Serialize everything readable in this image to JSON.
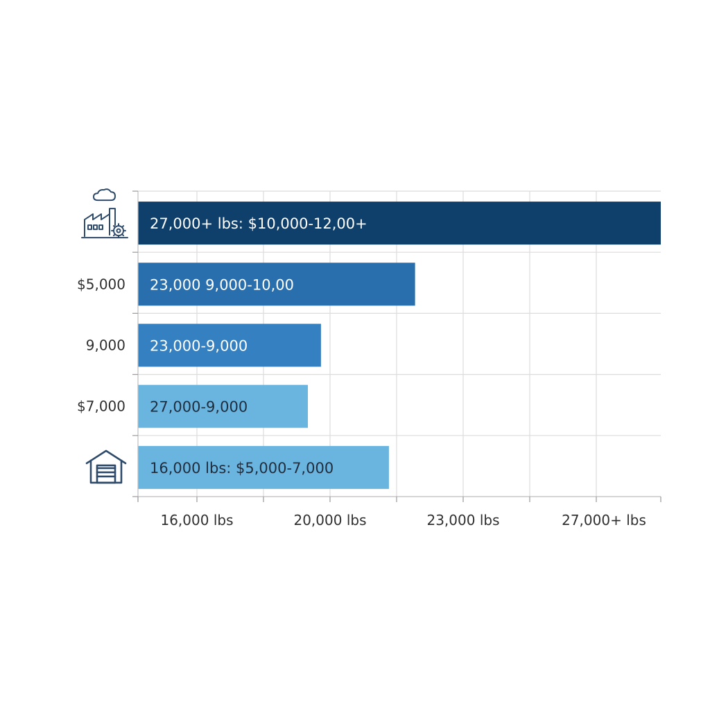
{
  "chart_data": {
    "type": "bar",
    "orientation": "horizontal",
    "title": "",
    "xlabel": "",
    "ylabel": "",
    "x_tick_labels": [
      "16,000 lbs",
      "20,000 lbs",
      "23,000 lbs",
      "27,000+ lbs"
    ],
    "category_labels": [
      "",
      "$5,000",
      "9,000",
      "$7,000",
      ""
    ],
    "category_icons": [
      "factory-icon",
      "",
      "",
      "",
      "warehouse-icon"
    ],
    "bar_labels": [
      "27,000+ lbs: $10,000-12,00+",
      "23,000  9,000-10,00",
      "23,000-9,000",
      "27,000-9,000",
      "16,000 lbs: $5,000-7,000"
    ],
    "values": [
      1.0,
      0.53,
      0.35,
      0.325,
      0.48
    ],
    "xlim": [
      0,
      1
    ],
    "grid": true,
    "legend": "none",
    "colors": {
      "bars": [
        "#0f3f6b",
        "#2a6fad",
        "#3480c0",
        "#6ab4e0",
        "#6ab4e0"
      ],
      "label_text": [
        "#ffffff",
        "#ffffff",
        "#ffffff",
        "#1f2d3d",
        "#1f2d3d"
      ],
      "icon": "#2e4a6b"
    }
  }
}
